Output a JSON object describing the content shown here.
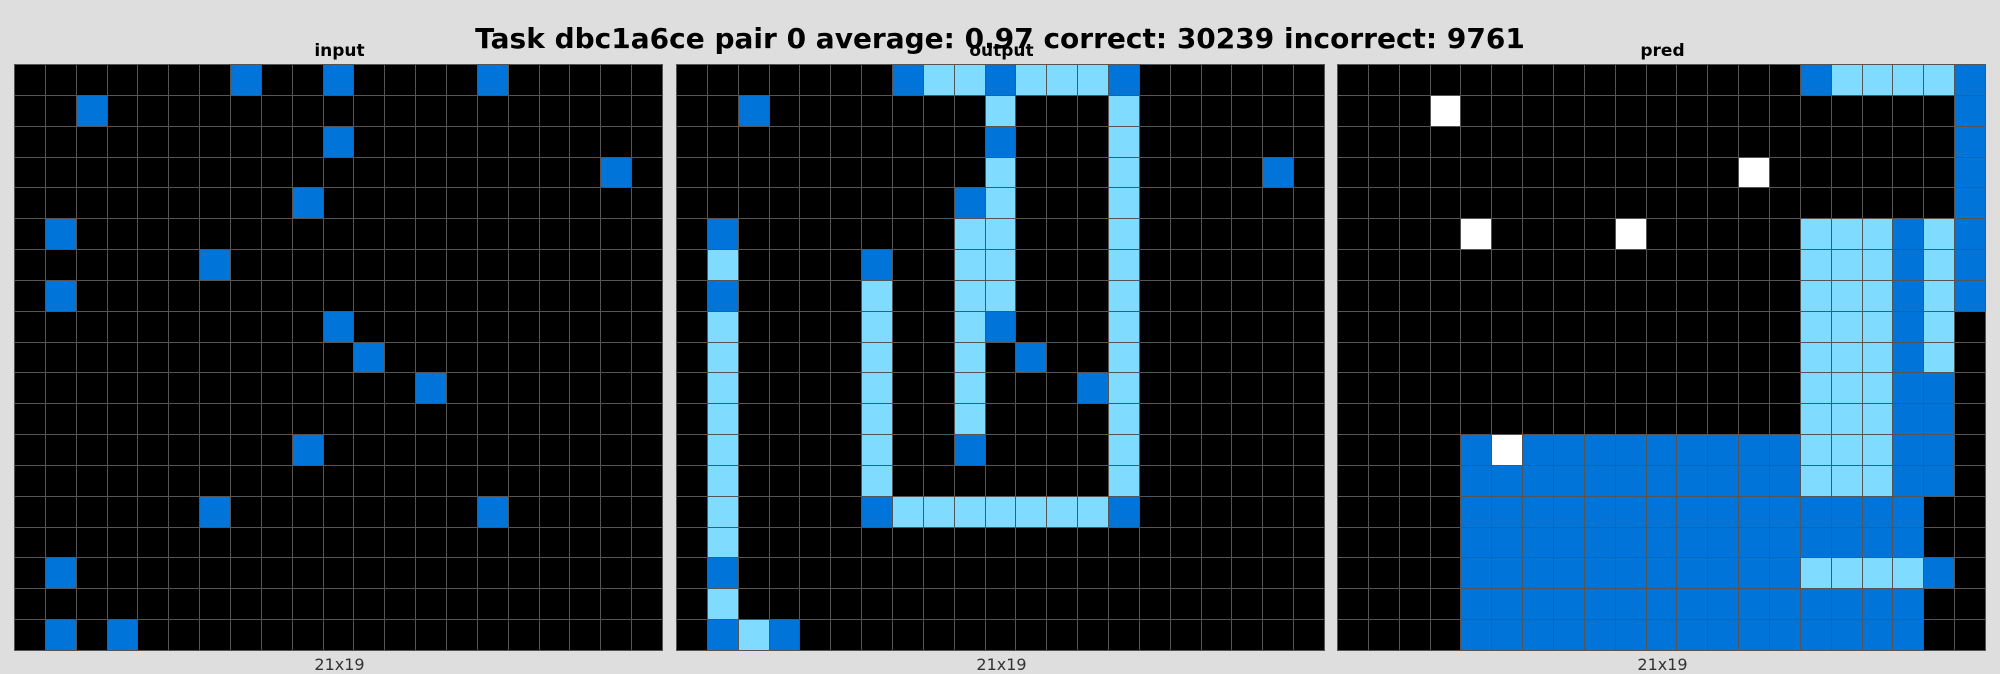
{
  "title": "Task dbc1a6ce pair 0 average: 0.97 correct: 30239 incorrect: 9761",
  "colors": {
    "0": "#000000",
    "1": "#0074d9",
    "8": "#7fdbff",
    "5": "#ffffff"
  },
  "panels": [
    {
      "label": "input",
      "dims": "21x19",
      "rows": [
        "000000010010000100000",
        "001000000000000000000",
        "000000000010000000000",
        "000000000000000000010",
        "000000000100000000000",
        "010000000000000000000",
        "000000100000000000000",
        "010000000000000000000",
        "000000000010000000000",
        "000000000001000000000",
        "000000000000010000000",
        "000000000000000000000",
        "000000000100000000000",
        "000000000000000000000",
        "000000100000000100000",
        "000000000000000000000",
        "010000000000000000000",
        "000000000000000000000",
        "010100000000000000000"
      ]
    },
    {
      "label": "output",
      "dims": "21x19",
      "rows": [
        "000000018818881000000",
        "001000000080008000000",
        "000000000010008000000",
        "000000000080008000010",
        "000000000180008000000",
        "010000000880008000000",
        "080000100880008000000",
        "010000800880008000000",
        "080000800810008000000",
        "080000800801008000000",
        "080000800800018000000",
        "080000800800008000000",
        "080000800100008000000",
        "080000800000008000000",
        "080000188888881000000",
        "080000000000000000000",
        "010000000000000000000",
        "080000000000000000000",
        "018100000000000000000"
      ]
    },
    {
      "label": "pred",
      "dims": "21x19",
      "rows": [
        "000000000000000188881",
        "000500000000000000001",
        "000000000000000000001",
        "000000000000050000001",
        "000000000000000000001",
        "000050000500000888181",
        "000000000000000888181",
        "000000000000000888181",
        "000000000000000888180",
        "000000000000000888180",
        "000000000000000888110",
        "000000000000000888110",
        "000015111111111888110",
        "000011111111111888110",
        "000011111111111111100",
        "000011111111111111100",
        "000011111111111888810",
        "000011111111111111100",
        "000011111111111111100"
      ]
    }
  ]
}
